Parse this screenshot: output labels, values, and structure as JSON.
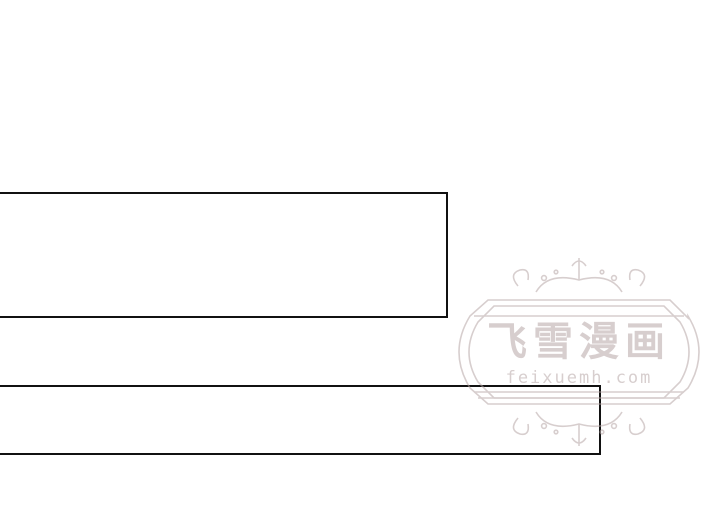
{
  "watermark": {
    "title": "飞雪漫画",
    "url": "feixuemh.com"
  },
  "colors": {
    "panel_border": "#111111",
    "background": "#ffffff",
    "watermark": "#b7a7a7"
  }
}
